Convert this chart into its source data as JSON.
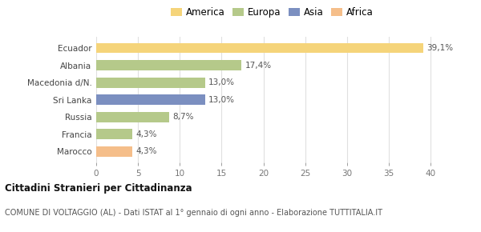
{
  "categories": [
    "Marocco",
    "Francia",
    "Russia",
    "Sri Lanka",
    "Macedonia d/N.",
    "Albania",
    "Ecuador"
  ],
  "values": [
    4.3,
    4.3,
    8.7,
    13.0,
    13.0,
    17.4,
    39.1
  ],
  "colors": [
    "#f5be8a",
    "#b5c98a",
    "#b5c98a",
    "#7b8fc0",
    "#b5c98a",
    "#b5c98a",
    "#f5d47a"
  ],
  "labels": [
    "4,3%",
    "4,3%",
    "8,7%",
    "13,0%",
    "13,0%",
    "17,4%",
    "39,1%"
  ],
  "legend_labels": [
    "America",
    "Europa",
    "Asia",
    "Africa"
  ],
  "legend_colors": [
    "#f5d47a",
    "#b5c98a",
    "#7b8fc0",
    "#f5be8a"
  ],
  "xlim": [
    0,
    42
  ],
  "xticks": [
    0,
    5,
    10,
    15,
    20,
    25,
    30,
    35,
    40
  ],
  "title_bold": "Cittadini Stranieri per Cittadinanza",
  "subtitle": "COMUNE DI VOLTAGGIO (AL) - Dati ISTAT al 1° gennaio di ogni anno - Elaborazione TUTTITALIA.IT",
  "background_color": "#ffffff",
  "bar_height": 0.6
}
